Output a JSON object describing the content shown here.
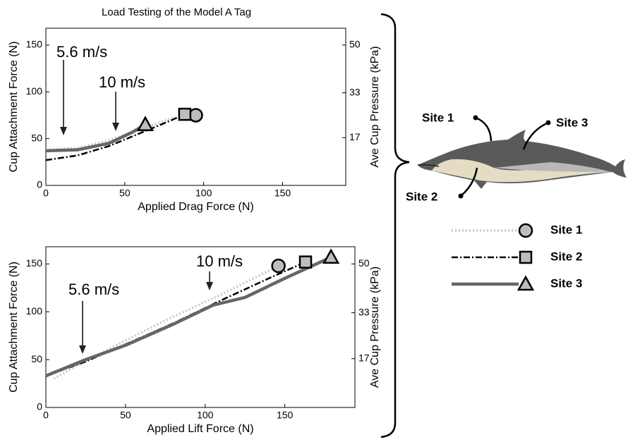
{
  "chart_data": [
    {
      "type": "line",
      "title": "Load Testing of the Model A Tag",
      "x_label": "Applied Drag Force (N)",
      "y_label": "Cup Attachment Force (N)",
      "y2_label": "Ave Cup Pressure (kPa)",
      "xlim": [
        0,
        190
      ],
      "ylim": [
        0,
        168
      ],
      "y2lim": [
        0,
        56
      ],
      "xticks": [
        0,
        50,
        100,
        150
      ],
      "yticks": [
        0,
        50,
        100,
        150
      ],
      "y2ticks": [
        17,
        33,
        50
      ],
      "annotations": [
        "5.6 m/s",
        "10 m/s"
      ],
      "series": [
        {
          "name": "Site 1",
          "color": "#c8c8c8",
          "marker": "circle",
          "x": [
            0,
            20,
            40,
            60,
            80,
            95
          ],
          "values": [
            38,
            40,
            48,
            60,
            72,
            75
          ]
        },
        {
          "name": "Site 2",
          "color": "#000000",
          "marker": "square",
          "x": [
            0,
            20,
            40,
            60,
            80,
            88
          ],
          "values": [
            27,
            32,
            42,
            56,
            70,
            76
          ]
        },
        {
          "name": "Site 3",
          "color": "#666666",
          "marker": "triangle",
          "x": [
            0,
            20,
            40,
            55,
            63
          ],
          "values": [
            37,
            38,
            45,
            57,
            65
          ]
        }
      ]
    },
    {
      "type": "line",
      "x_label": "Applied Lift Force (N)",
      "y_label": "Cup Attachment Force (N)",
      "y2_label": "Ave Cup Pressure (kPa)",
      "xlim": [
        0,
        194
      ],
      "ylim": [
        0,
        168
      ],
      "y2lim": [
        0,
        56
      ],
      "xticks": [
        0,
        50,
        100,
        150
      ],
      "yticks": [
        0,
        50,
        100,
        150
      ],
      "y2ticks": [
        17,
        33,
        50
      ],
      "annotations": [
        "10 m/s",
        "5.6 m/s"
      ],
      "series": [
        {
          "name": "Site 1",
          "color": "#c8c8c8",
          "marker": "circle",
          "x": [
            5,
            20,
            50,
            80,
            110,
            146
          ],
          "values": [
            30,
            44,
            70,
            95,
            118,
            148
          ]
        },
        {
          "name": "Site 2",
          "color": "#000000",
          "marker": "square",
          "x": [
            0,
            25,
            50,
            80,
            110,
            140,
            163
          ],
          "values": [
            33,
            48,
            66,
            88,
            112,
            135,
            152
          ]
        },
        {
          "name": "Site 3",
          "color": "#666666",
          "marker": "triangle",
          "x": [
            0,
            25,
            50,
            80,
            105,
            125,
            150,
            179
          ],
          "values": [
            33,
            50,
            65,
            87,
            107,
            115,
            135,
            157
          ]
        }
      ]
    }
  ],
  "diagram": {
    "site_labels": [
      "Site 1",
      "Site 2",
      "Site 3"
    ]
  }
}
